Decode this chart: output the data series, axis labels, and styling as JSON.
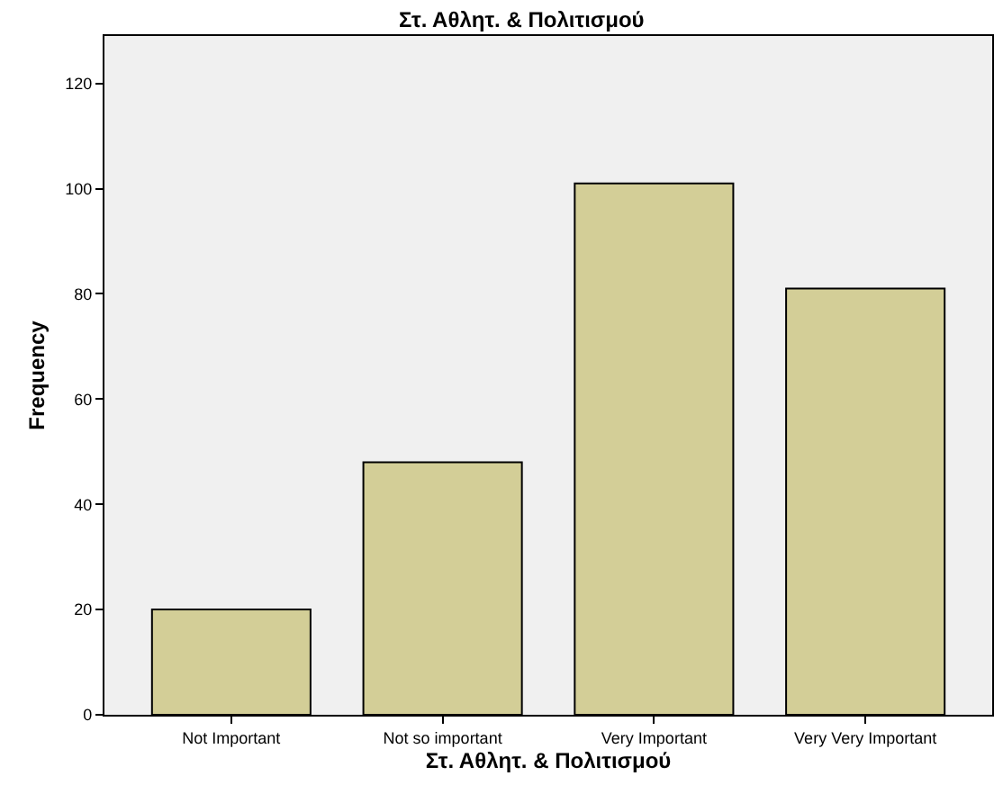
{
  "chart_data": {
    "type": "bar",
    "title": "Στ. Αθλητ. & Πολιτισμού",
    "xlabel": "Στ. Αθλητ. & Πολιτισμού",
    "ylabel": "Frequency",
    "categories": [
      "Not Important",
      "Not so important",
      "Very Important",
      "Very Very Important"
    ],
    "values": [
      20,
      48,
      101,
      81
    ],
    "color": "#d3ce97",
    "ylim": [
      0,
      129
    ],
    "yticks": [
      0,
      20,
      40,
      60,
      80,
      100,
      120
    ],
    "grid": false
  }
}
